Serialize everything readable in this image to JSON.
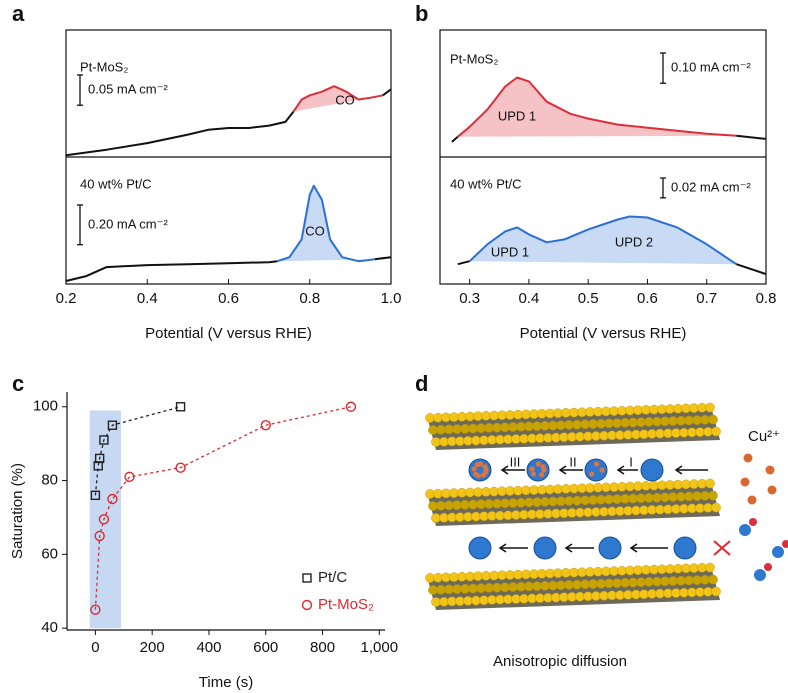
{
  "chart_data": [
    {
      "type": "line",
      "panel_label": "a",
      "xlabel": "Potential (V versus RHE)",
      "xlim": [
        0.2,
        1.0
      ],
      "xticks": [
        0.2,
        0.4,
        0.6,
        0.8,
        {
          "value": 1.0,
          "label": "1.0"
        }
      ],
      "panels": [
        {
          "label": "Pt-MoS₂",
          "annotations": [
            "CO"
          ],
          "scale_bar": {
            "value": 0.05,
            "label": "0.05 mA cm⁻²"
          },
          "ylim": [
            0,
            0.21
          ],
          "x": [
            0.2,
            0.3,
            0.4,
            0.5,
            0.55,
            0.6,
            0.65,
            0.7,
            0.74,
            0.76,
            0.78,
            0.8,
            0.83,
            0.86,
            0.89,
            0.92,
            0.95,
            0.98,
            1.0
          ],
          "series": [
            {
              "color": "#d8303c",
              "fill": "#f5c2c5",
              "base_color": "#111111",
              "shaded_xrange": [
                0.76,
                0.98
              ],
              "values": [
                0.003,
                0.012,
                0.023,
                0.037,
                0.045,
                0.048,
                0.048,
                0.052,
                0.058,
                0.075,
                0.095,
                0.102,
                0.108,
                0.117,
                0.108,
                0.095,
                0.098,
                0.102,
                0.112
              ]
            }
          ]
        },
        {
          "label": "40 wt% Pt/C",
          "annotations": [
            "CO"
          ],
          "scale_bar": {
            "value": 0.2,
            "label": "0.20 mA cm⁻²"
          },
          "ylim": [
            0,
            0.64
          ],
          "x": [
            0.2,
            0.25,
            0.3,
            0.4,
            0.5,
            0.6,
            0.7,
            0.72,
            0.75,
            0.78,
            0.8,
            0.81,
            0.83,
            0.85,
            0.88,
            0.92,
            0.96,
            1.0
          ],
          "series": [
            {
              "color": "#2a6fd6",
              "fill": "#c9daf5",
              "base_color": "#111111",
              "shaded_xrange": [
                0.72,
                0.96
              ],
              "values": [
                0.015,
                0.04,
                0.085,
                0.095,
                0.1,
                0.105,
                0.11,
                0.115,
                0.135,
                0.225,
                0.45,
                0.495,
                0.425,
                0.225,
                0.135,
                0.115,
                0.125,
                0.135
              ]
            }
          ]
        }
      ]
    },
    {
      "type": "line",
      "panel_label": "b",
      "xlabel": "Potential (V versus RHE)",
      "xlim": [
        0.25,
        0.8
      ],
      "xticks": [
        0.3,
        0.4,
        0.5,
        0.6,
        0.7,
        0.8
      ],
      "panels": [
        {
          "label": "Pt-MoS₂",
          "annotations": [
            "UPD 1"
          ],
          "scale_bar": {
            "value": 0.1,
            "label": "0.10 mA cm⁻²"
          },
          "ylim": [
            0,
            0.42
          ],
          "x": [
            0.27,
            0.28,
            0.3,
            0.33,
            0.36,
            0.38,
            0.4,
            0.43,
            0.47,
            0.5,
            0.55,
            0.6,
            0.65,
            0.7,
            0.75,
            0.8
          ],
          "series": [
            {
              "color": "#d8303c",
              "fill": "#f5c2c5",
              "base_color": "#111111",
              "shaded_xrange": [
                0.28,
                0.75
              ],
              "values": [
                0.05,
                0.067,
                0.1,
                0.157,
                0.233,
                0.263,
                0.25,
                0.183,
                0.143,
                0.127,
                0.107,
                0.097,
                0.087,
                0.077,
                0.07,
                0.06
              ]
            }
          ]
        },
        {
          "label": "40 wt% Pt/C",
          "annotations": [
            "UPD 1",
            "UPD 2"
          ],
          "scale_bar": {
            "value": 0.02,
            "label": "0.02 mA cm⁻²"
          },
          "ylim": [
            0,
            0.128
          ],
          "x": [
            0.28,
            0.3,
            0.33,
            0.36,
            0.38,
            0.4,
            0.43,
            0.46,
            0.5,
            0.55,
            0.57,
            0.6,
            0.65,
            0.7,
            0.75,
            0.8
          ],
          "series": [
            {
              "color": "#2a6fd6",
              "fill": "#c9daf5",
              "base_color": "#111111",
              "shaded_xrange": [
                0.3,
                0.75
              ],
              "values": [
                0.02,
                0.023,
                0.04,
                0.053,
                0.057,
                0.05,
                0.042,
                0.045,
                0.055,
                0.065,
                0.068,
                0.067,
                0.057,
                0.04,
                0.02,
                0.01
              ]
            }
          ]
        }
      ]
    },
    {
      "type": "scatter",
      "panel_label": "c",
      "xlabel": "Time (s)",
      "ylabel": "Saturation (%)",
      "xlim": [
        -100,
        1020
      ],
      "xticks": [
        0,
        200,
        400,
        600,
        800,
        {
          "value": 1000,
          "label": "1,000"
        }
      ],
      "ylim": [
        39.5,
        104
      ],
      "yticks": [
        40,
        60,
        80,
        100
      ],
      "shaded_region": {
        "x": [
          -20,
          90
        ],
        "y": [
          40,
          99
        ],
        "color": "#c7d8f3"
      },
      "series": [
        {
          "name": "Pt/C",
          "color": "#222222",
          "marker": "square",
          "x": [
            0,
            10,
            15,
            30,
            60,
            300
          ],
          "values": [
            76,
            84,
            86,
            91,
            95,
            100
          ]
        },
        {
          "name": "Pt-MoS₂",
          "color": "#e0282e",
          "marker": "circle",
          "x": [
            0,
            15,
            30,
            60,
            120,
            300,
            600,
            900
          ],
          "values": [
            45,
            65,
            69.5,
            75,
            81,
            83.5,
            95,
            100
          ]
        }
      ]
    }
  ],
  "diagram": {
    "panel_label": "d",
    "ion_label": "Cu²⁺",
    "steps": [
      "III",
      "II",
      "I"
    ],
    "caption": "Anisotropic diffusion"
  }
}
